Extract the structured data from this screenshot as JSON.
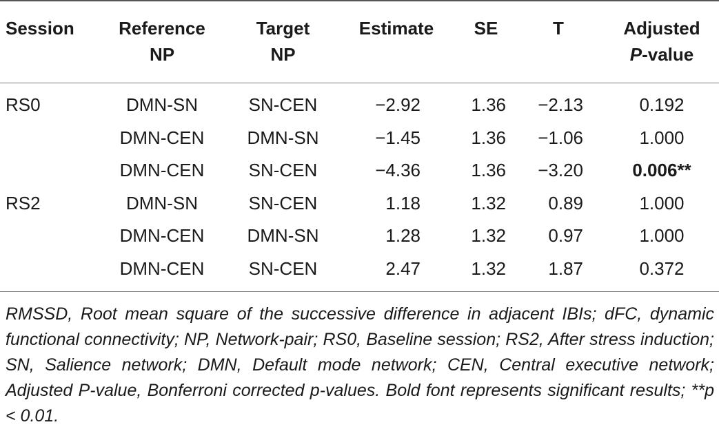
{
  "headers": {
    "session": "Session",
    "reference_l1": "Reference",
    "reference_l2": "NP",
    "target_l1": "Target",
    "target_l2": "NP",
    "estimate": "Estimate",
    "se": "SE",
    "t": "T",
    "adjusted_l1": "Adjusted",
    "adjusted_l2_italic": "P",
    "adjusted_l2_rest": "-value"
  },
  "rows": [
    {
      "session": "RS0",
      "reference": "DMN-SN",
      "target": "SN-CEN",
      "estimate": "−2.92",
      "se": "1.36",
      "t": "−2.13",
      "adjusted": "0.192",
      "significant": false
    },
    {
      "session": "",
      "reference": "DMN-CEN",
      "target": "DMN-SN",
      "estimate": "−1.45",
      "se": "1.36",
      "t": "−1.06",
      "adjusted": "1.000",
      "significant": false
    },
    {
      "session": "",
      "reference": "DMN-CEN",
      "target": "SN-CEN",
      "estimate": "−4.36",
      "se": "1.36",
      "t": "−3.20",
      "adjusted": "0.006**",
      "significant": true
    },
    {
      "session": "RS2",
      "reference": "DMN-SN",
      "target": "SN-CEN",
      "estimate": "1.18",
      "se": "1.32",
      "t": "0.89",
      "adjusted": "1.000",
      "significant": false
    },
    {
      "session": "",
      "reference": "DMN-CEN",
      "target": "DMN-SN",
      "estimate": "1.28",
      "se": "1.32",
      "t": "0.97",
      "adjusted": "1.000",
      "significant": false
    },
    {
      "session": "",
      "reference": "DMN-CEN",
      "target": "SN-CEN",
      "estimate": "2.47",
      "se": "1.32",
      "t": "1.87",
      "adjusted": "0.372",
      "significant": false
    }
  ],
  "footnote": "RMSSD, Root mean square of the successive difference in adjacent IBIs; dFC, dynamic functional connectivity; NP, Network-pair; RS0, Baseline session; RS2, After stress induction; SN, Salience network; DMN, Default mode network; CEN, Central executive network; Adjusted P-value, Bonferroni corrected p-values. Bold font represents significant results; **p < 0.01."
}
